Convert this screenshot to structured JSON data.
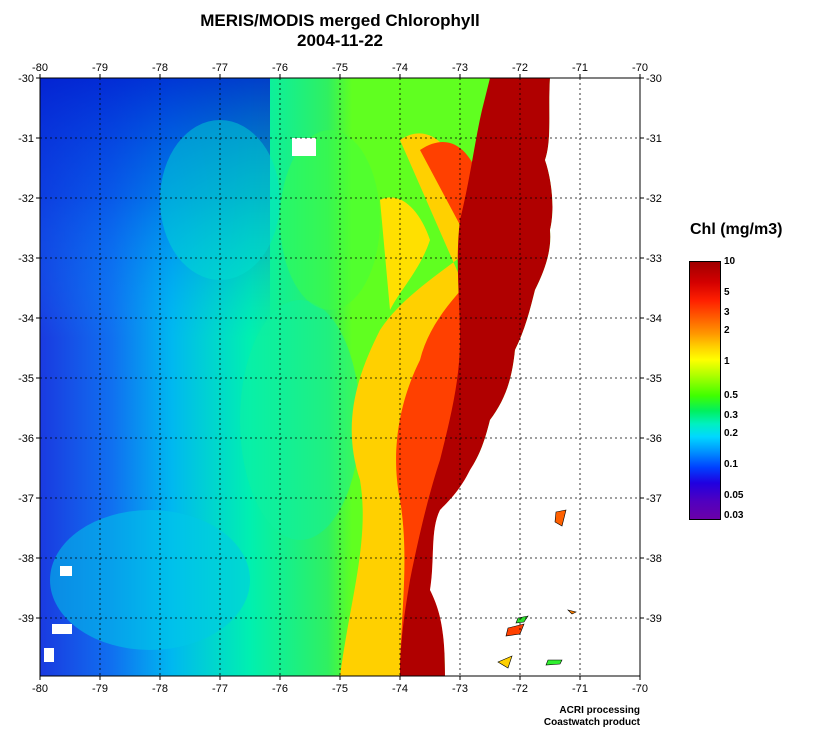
{
  "title": "MERIS/MODIS merged Chlorophyll",
  "date": "2004-11-22",
  "lon_ticks": [
    "-80",
    "-79",
    "-78",
    "-77",
    "-76",
    "-75",
    "-74",
    "-73",
    "-72",
    "-71",
    "-70"
  ],
  "lat_ticks": [
    "-30",
    "-31",
    "-32",
    "-33",
    "-34",
    "-35",
    "-36",
    "-37",
    "-38",
    "-39"
  ],
  "legend": {
    "title": "Chl (mg/m3)",
    "labels": [
      "10",
      "5",
      "3",
      "2",
      "1",
      "0.5",
      "0.3",
      "0.2",
      "0.1",
      "0.05",
      "0.03"
    ]
  },
  "credits": [
    "ACRI processing",
    "Coastwatch product"
  ],
  "colors": {
    "very_high": "#a80000",
    "high": "#ff3000",
    "medium": "#ffd000",
    "moderate": "#60ff00",
    "low": "#00ffa0",
    "lower": "#00d8ff",
    "lowest": "#0050ff",
    "deep": "#0030d8"
  }
}
